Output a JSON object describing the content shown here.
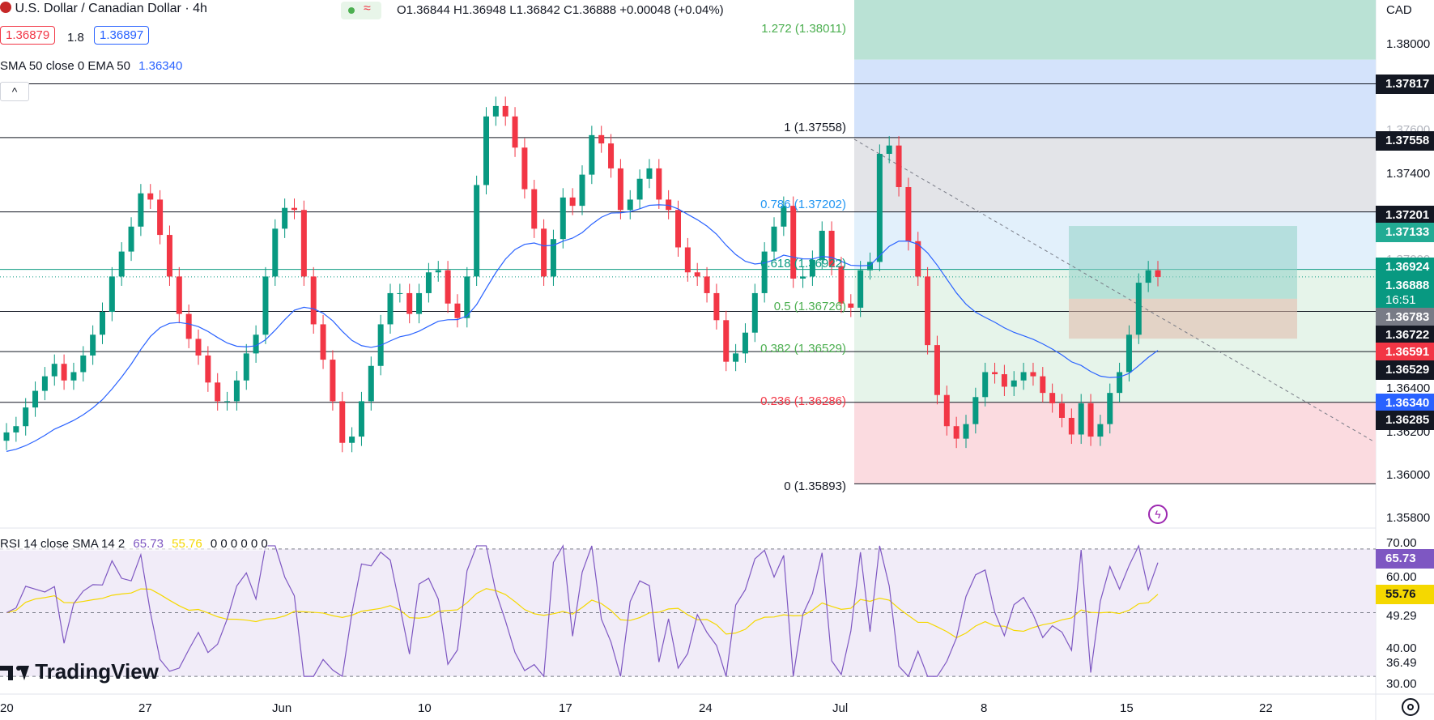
{
  "header": {
    "symbol": "U.S. Dollar / Canadian Dollar · 4h",
    "ohlc": "O1.36844 H1.36948 L1.36842 C1.36888 +0.00048 (+0.04%)",
    "bid": "1.36879",
    "spread": "1.8",
    "ask": "1.36897",
    "indicator": "SMA 50 close 0 EMA 50",
    "indicator_value": "1.36340",
    "collapse": "^"
  },
  "currency": "CAD",
  "fib_levels": [
    {
      "label": "1.272 (1.38011)",
      "price": 1.38011,
      "color": "#4caf50"
    },
    {
      "label": "1 (1.37558)",
      "price": 1.37558,
      "color": "#787b86"
    },
    {
      "label": "0.786 (1.37202)",
      "price": 1.37202,
      "color": "#2196f3"
    },
    {
      "label": "0.618 (1.36922)",
      "price": 1.36922,
      "color": "#089981"
    },
    {
      "label": "0.5 (1.36726)",
      "price": 1.36726,
      "color": "#4caf50"
    },
    {
      "label": "0.382 (1.36529)",
      "price": 1.36529,
      "color": "#4caf50"
    },
    {
      "label": "0.236 (1.36286)",
      "price": 1.36286,
      "color": "#f23645"
    },
    {
      "label": "0 (1.35893)",
      "price": 1.35893,
      "color": "#131722"
    }
  ],
  "price_axis": {
    "ticks": [
      "1.38000",
      "1.37600",
      "1.37400",
      "1.37000",
      "1.36400",
      "1.36200",
      "1.36000",
      "1.35800"
    ],
    "tags": [
      {
        "text": "1.37817",
        "bg": "#131722",
        "fg": "#ffffff"
      },
      {
        "text": "1.37558",
        "bg": "#131722",
        "fg": "#ffffff"
      },
      {
        "text": "1.37201",
        "bg": "#131722",
        "fg": "#ffffff"
      },
      {
        "text": "1.37133",
        "bg": "#22ab94",
        "fg": "#ffffff"
      },
      {
        "text": "1.36924",
        "bg": "#089981",
        "fg": "#ffffff"
      },
      {
        "text": "1.36888",
        "bg": "#089981",
        "fg": "#ffffff"
      },
      {
        "text": "16:51",
        "bg": "#089981",
        "fg": "#ffffff"
      },
      {
        "text": "1.36783",
        "bg": "#787b86",
        "fg": "#ffffff"
      },
      {
        "text": "1.36722",
        "bg": "#131722",
        "fg": "#ffffff"
      },
      {
        "text": "1.36591",
        "bg": "#f23645",
        "fg": "#ffffff"
      },
      {
        "text": "1.36529",
        "bg": "#131722",
        "fg": "#ffffff"
      },
      {
        "text": "1.36340",
        "bg": "#2962ff",
        "fg": "#ffffff"
      },
      {
        "text": "1.36285",
        "bg": "#131722",
        "fg": "#ffffff"
      }
    ]
  },
  "rsi": {
    "label": "RSI 14 close SMA 14 2",
    "rsi_value": "65.73",
    "sma_value": "55.76",
    "extra": "0  0  0  0  0  0",
    "axis_ticks": [
      "70.00",
      "60.00",
      "49.29",
      "40.00",
      "36.49",
      "30.00"
    ],
    "tag_rsi": "65.73",
    "tag_sma": "55.76"
  },
  "time_axis": [
    "20",
    "27",
    "Jun",
    "10",
    "17",
    "24",
    "Jul",
    "8",
    "15",
    "22"
  ],
  "watermark": "TradingView",
  "colors": {
    "up": "#089981",
    "down": "#f23645",
    "ma": "#2962ff",
    "rsi": "#7e57c2",
    "rsi_sma": "#f5d800"
  },
  "chart_data": {
    "type": "candlestick",
    "title": "U.S. Dollar / Canadian Dollar · 4h",
    "ylabel": "CAD",
    "ylim": [
      1.3568,
      1.3822
    ],
    "close": [
      1.3614,
      1.3617,
      1.3626,
      1.3634,
      1.3641,
      1.3647,
      1.3639,
      1.3643,
      1.3651,
      1.3661,
      1.3672,
      1.3689,
      1.3701,
      1.3713,
      1.3729,
      1.3726,
      1.3709,
      1.3689,
      1.3671,
      1.3659,
      1.3651,
      1.3638,
      1.3629,
      1.3629,
      1.3639,
      1.3652,
      1.3661,
      1.3689,
      1.3712,
      1.3722,
      1.3721,
      1.3689,
      1.3666,
      1.3649,
      1.3629,
      1.3609,
      1.3612,
      1.3629,
      1.3646,
      1.3666,
      1.3681,
      1.3681,
      1.3671,
      1.3681,
      1.3691,
      1.3692,
      1.3676,
      1.3669,
      1.3689,
      1.3733,
      1.3766,
      1.3771,
      1.3766,
      1.3751,
      1.3731,
      1.3712,
      1.3689,
      1.3707,
      1.3727,
      1.3723,
      1.3738,
      1.3757,
      1.3753,
      1.3741,
      1.3721,
      1.3726,
      1.3736,
      1.3741,
      1.3726,
      1.3721,
      1.3703,
      1.3691,
      1.3689,
      1.3681,
      1.3668,
      1.3648,
      1.3652,
      1.3662,
      1.3681,
      1.3701,
      1.3713,
      1.3723,
      1.3688,
      1.3689,
      1.3697,
      1.3711,
      1.3694,
      1.3676,
      1.3674,
      1.3692,
      1.3696,
      1.3748,
      1.3752,
      1.3732,
      1.3706,
      1.3689,
      1.3656,
      1.3632,
      1.3617,
      1.3611,
      1.3618,
      1.3631,
      1.3643,
      1.3642,
      1.3636,
      1.3639,
      1.3643,
      1.3641,
      1.3633,
      1.3628,
      1.3621,
      1.3613,
      1.3628,
      1.3612,
      1.3618,
      1.3633,
      1.3643,
      1.3661,
      1.3686,
      1.3692,
      1.36888
    ]
  }
}
